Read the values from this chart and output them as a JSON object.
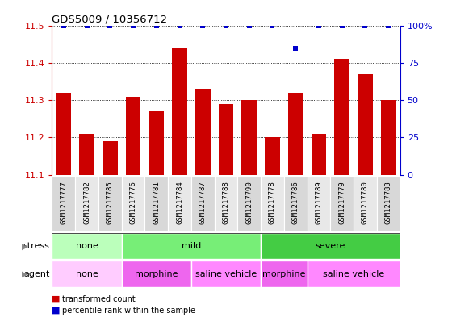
{
  "title": "GDS5009 / 10356712",
  "samples": [
    "GSM1217777",
    "GSM1217782",
    "GSM1217785",
    "GSM1217776",
    "GSM1217781",
    "GSM1217784",
    "GSM1217787",
    "GSM1217788",
    "GSM1217790",
    "GSM1217778",
    "GSM1217786",
    "GSM1217789",
    "GSM1217779",
    "GSM1217780",
    "GSM1217783"
  ],
  "bar_values": [
    11.32,
    11.21,
    11.19,
    11.31,
    11.27,
    11.44,
    11.33,
    11.29,
    11.3,
    11.2,
    11.32,
    11.21,
    11.41,
    11.37,
    11.3
  ],
  "percentile_values": [
    100,
    100,
    100,
    100,
    100,
    100,
    100,
    100,
    100,
    100,
    85,
    100,
    100,
    100,
    100
  ],
  "ylim_left": [
    11.1,
    11.5
  ],
  "ylim_right": [
    0,
    100
  ],
  "bar_color": "#cc0000",
  "dot_color": "#0000cc",
  "left_tick_color": "#cc0000",
  "right_tick_color": "#0000cc",
  "stress_groups": [
    {
      "label": "none",
      "start": 0,
      "end": 3,
      "color": "#bbffbb"
    },
    {
      "label": "mild",
      "start": 3,
      "end": 9,
      "color": "#77ee77"
    },
    {
      "label": "severe",
      "start": 9,
      "end": 15,
      "color": "#44cc44"
    }
  ],
  "agent_groups": [
    {
      "label": "none",
      "start": 0,
      "end": 3,
      "color": "#ffccff"
    },
    {
      "label": "morphine",
      "start": 3,
      "end": 6,
      "color": "#ee66ee"
    },
    {
      "label": "saline vehicle",
      "start": 6,
      "end": 9,
      "color": "#ff88ff"
    },
    {
      "label": "morphine",
      "start": 9,
      "end": 11,
      "color": "#ee66ee"
    },
    {
      "label": "saline vehicle",
      "start": 11,
      "end": 15,
      "color": "#ff88ff"
    }
  ],
  "col_bg_even": "#d8d8d8",
  "col_bg_odd": "#e8e8e8",
  "bar_width": 0.65,
  "ytick_fontsize": 8,
  "xtick_fontsize": 6.5,
  "label_fontsize": 8,
  "group_fontsize": 8,
  "title_fontsize": 9.5
}
